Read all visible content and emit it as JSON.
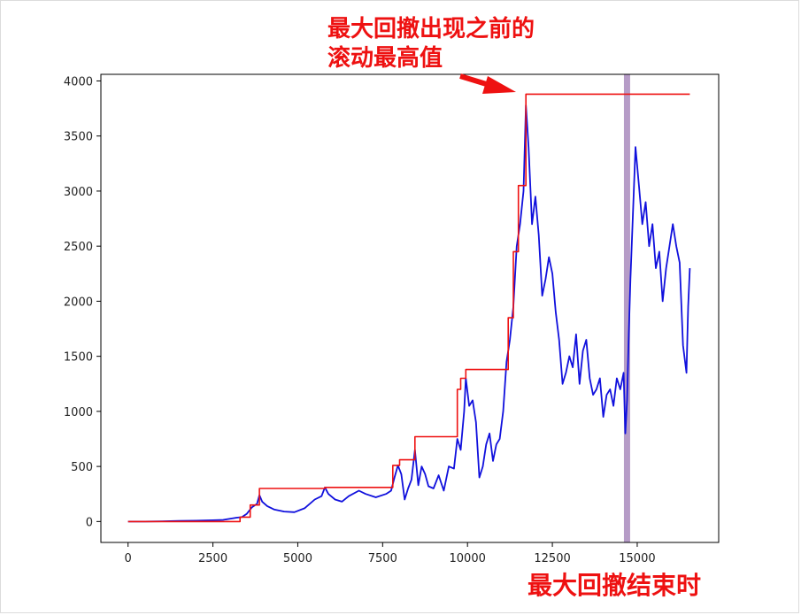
{
  "annotations": {
    "peak_label_line1": "最大回撤出现之前的",
    "peak_label_line2": "滚动最高值",
    "end_label": "最大回撤结束时"
  },
  "colors": {
    "price_line": "#1010dd",
    "rolling_max_line": "#ee1111",
    "drawdown_end_band": "#a98bbd",
    "annotation_text": "#ee1111",
    "arrow": "#ee1111"
  },
  "chart_data": {
    "type": "line",
    "title": "",
    "xlabel": "",
    "ylabel": "",
    "xlim": [
      -800,
      17400
    ],
    "ylim": [
      -190,
      4060
    ],
    "xticks": [
      0,
      2500,
      5000,
      7500,
      10000,
      12500,
      15000
    ],
    "yticks": [
      0,
      500,
      1000,
      1500,
      2000,
      2500,
      3000,
      3500,
      4000
    ],
    "grid": false,
    "series": [
      {
        "name": "",
        "role": "price",
        "x": [
          0,
          500,
          1000,
          1500,
          2000,
          2500,
          2800,
          3000,
          3200,
          3350,
          3500,
          3650,
          3800,
          3870,
          3950,
          4100,
          4300,
          4600,
          4900,
          5200,
          5500,
          5700,
          5800,
          5900,
          6100,
          6300,
          6500,
          6800,
          7000,
          7300,
          7600,
          7750,
          7850,
          7950,
          8050,
          8150,
          8250,
          8350,
          8450,
          8550,
          8650,
          8750,
          8850,
          9000,
          9150,
          9300,
          9450,
          9600,
          9700,
          9800,
          9900,
          9950,
          10050,
          10150,
          10250,
          10350,
          10450,
          10550,
          10650,
          10750,
          10850,
          10950,
          11050,
          11150,
          11250,
          11350,
          11450,
          11550,
          11650,
          11720,
          11800,
          11900,
          12000,
          12100,
          12200,
          12300,
          12400,
          12500,
          12600,
          12700,
          12800,
          12900,
          13000,
          13100,
          13200,
          13300,
          13400,
          13500,
          13600,
          13700,
          13800,
          13900,
          14000,
          14100,
          14200,
          14300,
          14400,
          14500,
          14600,
          14650,
          14700,
          14750,
          14800,
          14850,
          14950,
          15050,
          15150,
          15250,
          15350,
          15450,
          15550,
          15650,
          15750,
          15850,
          15950,
          16050,
          16150,
          16250,
          16350,
          16450,
          16500,
          16550
        ],
        "values": [
          0,
          0,
          2,
          5,
          8,
          12,
          15,
          25,
          35,
          40,
          70,
          130,
          160,
          240,
          180,
          140,
          110,
          90,
          85,
          120,
          200,
          230,
          310,
          250,
          200,
          180,
          230,
          280,
          250,
          220,
          250,
          280,
          400,
          510,
          430,
          200,
          300,
          380,
          650,
          330,
          500,
          430,
          320,
          300,
          420,
          280,
          500,
          480,
          750,
          650,
          1000,
          1300,
          1050,
          1100,
          900,
          400,
          500,
          700,
          800,
          550,
          700,
          750,
          1000,
          1450,
          1650,
          1950,
          2500,
          2700,
          3000,
          3780,
          3400,
          2700,
          2950,
          2600,
          2050,
          2200,
          2400,
          2250,
          1900,
          1650,
          1250,
          1350,
          1500,
          1400,
          1700,
          1250,
          1550,
          1650,
          1300,
          1150,
          1200,
          1300,
          950,
          1150,
          1200,
          1050,
          1300,
          1200,
          1350,
          800,
          1100,
          1700,
          2200,
          2600,
          3400,
          3050,
          2700,
          2900,
          2500,
          2700,
          2300,
          2450,
          2000,
          2300,
          2500,
          2700,
          2500,
          2350,
          1600,
          1350,
          1950,
          2300
        ]
      },
      {
        "name": "",
        "role": "rolling_max",
        "x": [
          0,
          3300,
          3300,
          3600,
          3600,
          3870,
          3870,
          5800,
          5800,
          7800,
          7800,
          8000,
          8000,
          8450,
          8450,
          9700,
          9700,
          9800,
          9800,
          9950,
          9950,
          11200,
          11200,
          11350,
          11350,
          11500,
          11500,
          11720,
          11720,
          16550
        ],
        "values": [
          0,
          0,
          40,
          40,
          150,
          150,
          300,
          300,
          310,
          310,
          510,
          510,
          560,
          560,
          770,
          770,
          1200,
          1200,
          1300,
          1300,
          1380,
          1380,
          1850,
          1850,
          2450,
          2450,
          3050,
          3050,
          3880,
          3880
        ]
      }
    ],
    "drawdown_end_x": 14700
  }
}
